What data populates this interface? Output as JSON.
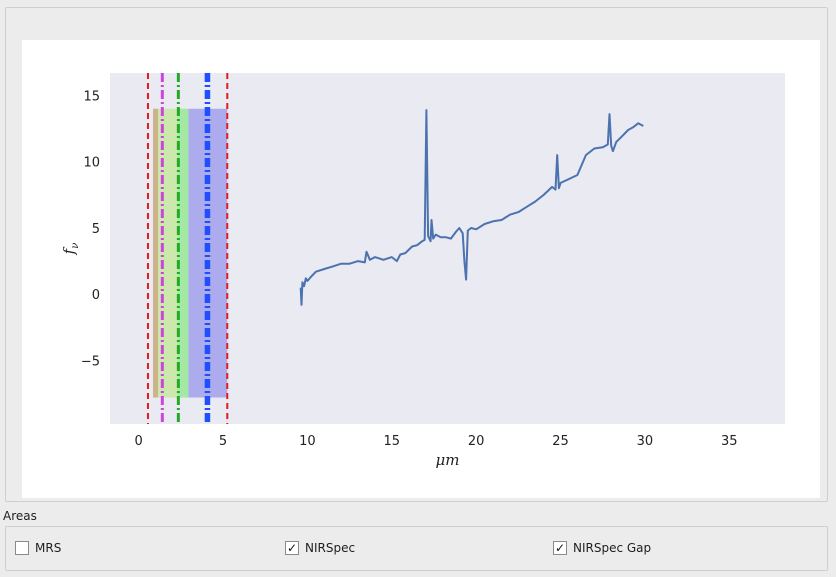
{
  "chart_data": {
    "type": "line",
    "xlabel": "μm",
    "ylabel": "f_ν",
    "xlim": [
      -1.7,
      38.3
    ],
    "ylim": [
      -9.8,
      16.7
    ],
    "xticks": [
      0,
      5,
      10,
      15,
      20,
      25,
      30,
      35
    ],
    "yticks": [
      -5,
      0,
      5,
      10,
      15
    ],
    "grid": false,
    "background": "#eaeaf2",
    "series": [
      {
        "color": "#4c72b0",
        "x": [
          9.6,
          9.65,
          9.7,
          9.8,
          9.9,
          10.0,
          10.2,
          10.5,
          11.0,
          11.5,
          12.0,
          12.5,
          13.0,
          13.4,
          13.5,
          13.7,
          14.0,
          14.5,
          15.0,
          15.3,
          15.5,
          15.8,
          16.2,
          16.5,
          16.8,
          16.95,
          17.05,
          17.15,
          17.3,
          17.35,
          17.45,
          17.6,
          17.9,
          18.2,
          18.5,
          18.8,
          19.0,
          19.2,
          19.3,
          19.4,
          19.5,
          19.7,
          20.0,
          20.5,
          21.0,
          21.5,
          22.0,
          22.5,
          23.0,
          23.5,
          24.0,
          24.5,
          24.7,
          24.8,
          24.9,
          25.0,
          25.5,
          26.0,
          26.5,
          27.0,
          27.5,
          27.8,
          27.9,
          28.0,
          28.1,
          28.3,
          28.7,
          29.0,
          29.3,
          29.6,
          29.9
        ],
        "values": [
          0.5,
          -0.8,
          0.9,
          0.6,
          1.2,
          1.0,
          1.3,
          1.7,
          1.9,
          2.1,
          2.3,
          2.3,
          2.5,
          2.4,
          3.2,
          2.6,
          2.8,
          2.6,
          2.8,
          2.5,
          3.0,
          3.1,
          3.6,
          3.7,
          4.0,
          4.1,
          13.9,
          4.4,
          4.0,
          5.6,
          4.2,
          4.5,
          4.3,
          4.3,
          4.2,
          4.7,
          5.0,
          4.6,
          2.5,
          1.1,
          4.8,
          5.0,
          4.9,
          5.3,
          5.5,
          5.6,
          6.0,
          6.2,
          6.6,
          7.0,
          7.5,
          8.1,
          7.9,
          10.5,
          8.0,
          8.4,
          8.7,
          9.0,
          10.5,
          11.0,
          11.1,
          11.3,
          13.6,
          11.2,
          10.8,
          11.5,
          12.0,
          12.4,
          12.6,
          12.9,
          12.7
        ]
      }
    ],
    "shaded_regions": [
      {
        "x0": 0.85,
        "x1": 1.15,
        "y0": -7.8,
        "y1": 14.0,
        "color": "#c8a878"
      },
      {
        "x0": 1.15,
        "x1": 2.3,
        "y0": -7.8,
        "y1": 14.0,
        "color": "#c8e8a0"
      },
      {
        "x0": 2.3,
        "x1": 2.95,
        "y0": -7.8,
        "y1": 14.0,
        "color": "#98e898"
      },
      {
        "x0": 2.95,
        "x1": 5.25,
        "y0": -7.8,
        "y1": 14.0,
        "color": "#a0a0ec"
      }
    ],
    "vlines": [
      {
        "x": 0.55,
        "color": "#e41a1c",
        "style": "dashed"
      },
      {
        "x": 5.25,
        "color": "#e41a1c",
        "style": "dashed"
      },
      {
        "x": 1.4,
        "color": "#cc44dd",
        "style": "dashdot"
      },
      {
        "x": 2.35,
        "color": "#22aa22",
        "style": "dashdot"
      },
      {
        "x": 4.0,
        "color": "#1f4fff",
        "style": "dashdot"
      },
      {
        "x": 4.15,
        "color": "#1f4fff",
        "style": "dashdot"
      }
    ]
  },
  "areas": {
    "label": "Areas",
    "options": [
      {
        "label": "MRS",
        "checked": false
      },
      {
        "label": "NIRSpec",
        "checked": true
      },
      {
        "label": "NIRSpec Gap",
        "checked": true
      }
    ]
  }
}
